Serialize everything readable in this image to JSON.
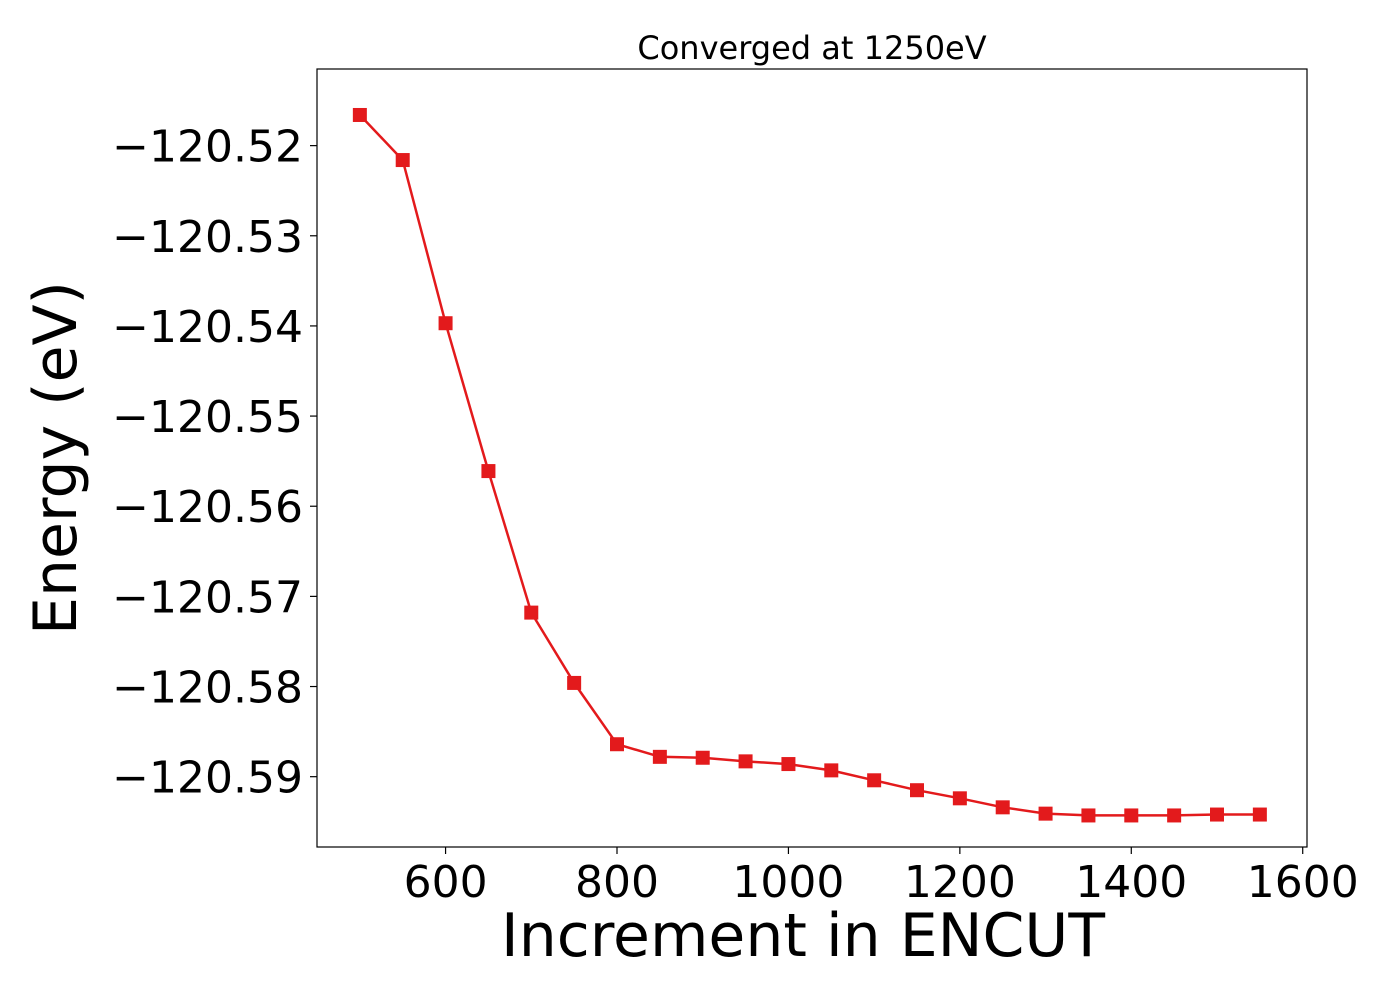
{
  "chart_data": {
    "type": "line",
    "title": "Converged at 1250eV",
    "xlabel": "Increment in ENCUT",
    "ylabel": "Energy (eV)",
    "xlim": [
      450,
      1605
    ],
    "ylim": [
      -120.5978,
      -120.5115
    ],
    "xticks": [
      600,
      800,
      1000,
      1200,
      1400,
      1600
    ],
    "xtick_labels": [
      "600",
      "800",
      "1000",
      "1200",
      "1400",
      "1600"
    ],
    "yticks": [
      -120.52,
      -120.53,
      -120.54,
      -120.55,
      -120.56,
      -120.57,
      -120.58,
      -120.59
    ],
    "ytick_labels": [
      "−120.52",
      "−120.53",
      "−120.54",
      "−120.55",
      "−120.56",
      "−120.57",
      "−120.58",
      "−120.59"
    ],
    "grid": false,
    "marker": "square",
    "color": "#e31a1c",
    "series": [
      {
        "x": [
          500,
          550,
          600,
          650,
          700,
          750,
          800,
          850,
          900,
          950,
          1000,
          1050,
          1100,
          1150,
          1200,
          1250,
          1300,
          1350,
          1400,
          1450,
          1500,
          1550
        ],
        "y": [
          -120.5166,
          -120.5216,
          -120.5397,
          -120.5561,
          -120.5718,
          -120.5796,
          -120.5864,
          -120.5878,
          -120.5879,
          -120.5883,
          -120.5886,
          -120.5893,
          -120.5904,
          -120.5915,
          -120.5924,
          -120.5934,
          -120.5941,
          -120.5943,
          -120.5943,
          -120.5943,
          -120.5942,
          -120.5942
        ]
      }
    ]
  }
}
